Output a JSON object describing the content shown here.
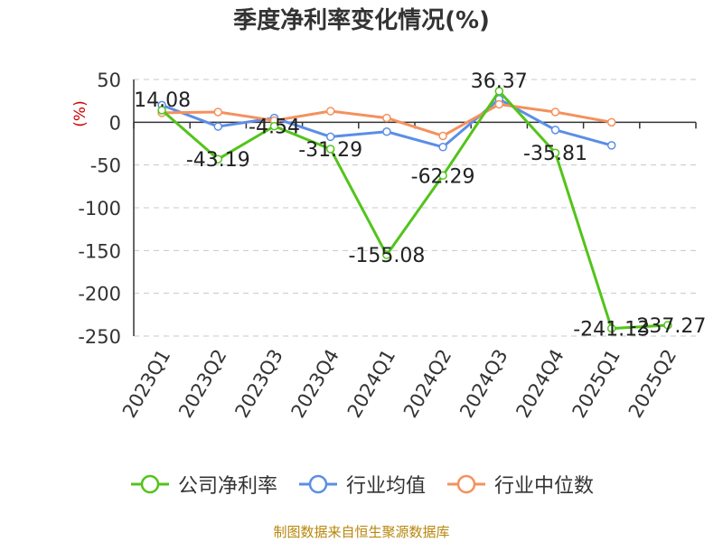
{
  "chart_data": {
    "type": "line",
    "title": "季度净利率变化情况(%)",
    "ylabel": "(%)",
    "xlabel": "",
    "categories": [
      "2023Q1",
      "2023Q2",
      "2023Q3",
      "2023Q4",
      "2024Q1",
      "2024Q2",
      "2024Q3",
      "2024Q4",
      "2025Q1",
      "2025Q2"
    ],
    "ylim": [
      -250,
      50
    ],
    "yticks": [
      "50",
      "0",
      "-50",
      "-100",
      "-150",
      "-200",
      "-250"
    ],
    "ytick_values": [
      50,
      0,
      -50,
      -100,
      -150,
      -200,
      -250
    ],
    "grid": true,
    "legend_position": "bottom",
    "series": [
      {
        "name": "公司净利率",
        "color": "#52c41a",
        "values": [
          14.08,
          -43.19,
          -4.54,
          -31.29,
          -155.08,
          -62.29,
          36.37,
          -35.81,
          -241.13,
          -237.27
        ],
        "labels": [
          "14.08",
          "-43.19",
          "-4.54",
          "-31.29",
          "-155.08",
          "-62.29",
          "36.37",
          "-35.81",
          "-241.13",
          "-237.27"
        ],
        "label_anchor": [
          "end",
          "middle",
          "middle",
          "middle",
          "middle",
          "middle",
          "middle",
          "middle",
          "middle",
          "middle"
        ]
      },
      {
        "name": "行业均值",
        "color": "#5b8ee6",
        "values": [
          20,
          -5,
          5,
          -17,
          -11,
          -29,
          27,
          -9,
          -27,
          null
        ]
      },
      {
        "name": "行业中位数",
        "color": "#f4915e",
        "values": [
          11,
          12,
          2,
          13,
          5,
          -16,
          21,
          12,
          0,
          null
        ]
      }
    ]
  },
  "source_note": "制图数据来自恒生聚源数据库"
}
